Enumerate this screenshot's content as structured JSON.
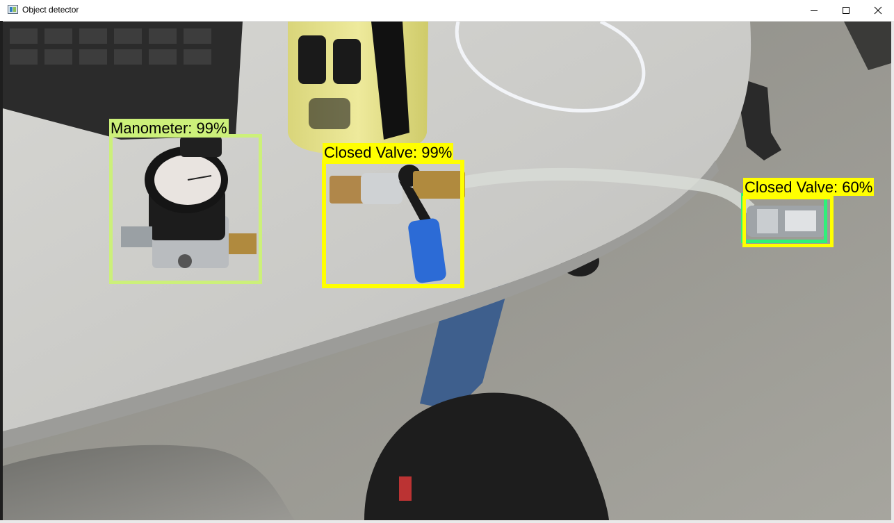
{
  "window": {
    "title": "Object detector",
    "icon": "app-window-icon",
    "controls": [
      "minimize-icon",
      "maximize-icon",
      "close-icon"
    ]
  },
  "detections": [
    {
      "label": "Manometer: 99%",
      "color": "#ccf07a"
    },
    {
      "label": "Closed Valve: 99%",
      "color": "#ffff00"
    },
    {
      "label": "Closed Valve: 60%",
      "color": "#ffff00",
      "secondary_color": "#2ff07a"
    }
  ]
}
